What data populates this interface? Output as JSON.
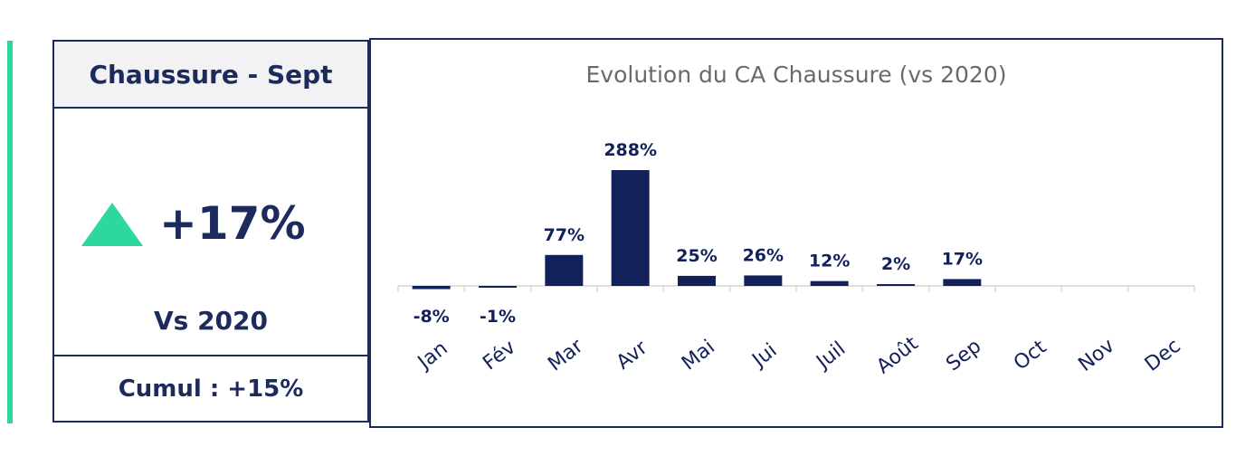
{
  "kpi": {
    "header": "Chaussure - Sept",
    "value": "+17%",
    "comparison": "Vs 2020",
    "cumul": "Cumul : +15%",
    "trend_icon": "triangle-up-icon",
    "accent_color": "#2ed6a0",
    "primary_color": "#1c2a5c"
  },
  "chart_data": {
    "type": "bar",
    "title": "Evolution du CA Chaussure (vs 2020)",
    "xlabel": "",
    "ylabel": "",
    "categories": [
      "Jan",
      "Fév",
      "Mar",
      "Avr",
      "Mai",
      "Jui",
      "Juil",
      "Août",
      "Sep",
      "Oct",
      "Nov",
      "Dec"
    ],
    "values": [
      -8,
      -1,
      77,
      288,
      25,
      26,
      12,
      2,
      17,
      null,
      null,
      null
    ],
    "labels": [
      "-8%",
      "-1%",
      "77%",
      "288%",
      "25%",
      "26%",
      "12%",
      "2%",
      "17%",
      "",
      "",
      ""
    ],
    "unit": "%",
    "grid": false,
    "bar_color": "#12215a"
  }
}
